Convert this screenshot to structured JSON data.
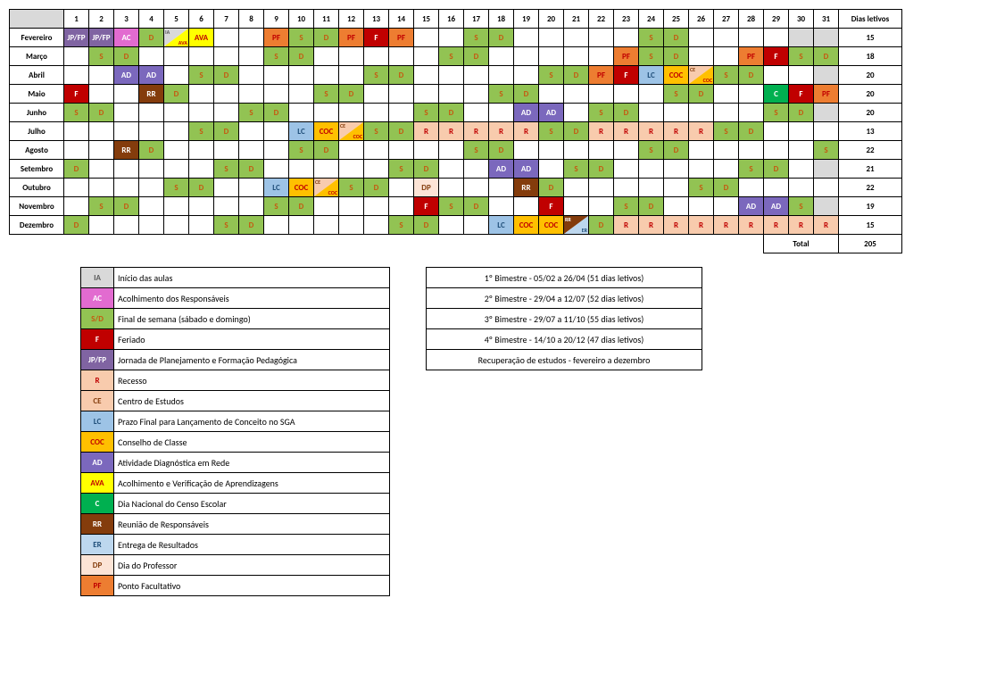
{
  "header": {
    "dias_letivos": "Dias letivos",
    "total_label": "Total",
    "total_value": "205"
  },
  "days": [
    "1",
    "2",
    "3",
    "4",
    "5",
    "6",
    "7",
    "8",
    "9",
    "10",
    "11",
    "12",
    "13",
    "14",
    "15",
    "16",
    "17",
    "18",
    "19",
    "20",
    "21",
    "22",
    "23",
    "24",
    "25",
    "26",
    "27",
    "28",
    "29",
    "30",
    "31"
  ],
  "months": [
    {
      "name": "Fevereiro",
      "dl": "15",
      "maxd": 29,
      "cells": {
        "1": {
          "t": "JP/FP",
          "c": "jp"
        },
        "2": {
          "t": "JP/FP",
          "c": "jp"
        },
        "3": {
          "t": "AC",
          "c": "ac"
        },
        "4": {
          "t": "D",
          "c": "d"
        },
        "5": {
          "split": [
            "ia",
            "#d9d9d9",
            "IA",
            "ava",
            "#ffff00",
            "AVA"
          ]
        },
        "6": {
          "t": "AVA",
          "c": "ava"
        },
        "9": {
          "t": "PF",
          "c": "pf"
        },
        "10": {
          "t": "S",
          "c": "s"
        },
        "11": {
          "t": "D",
          "c": "d"
        },
        "12": {
          "t": "PF",
          "c": "pf"
        },
        "13": {
          "t": "F",
          "c": "f"
        },
        "14": {
          "t": "PF",
          "c": "pf"
        },
        "17": {
          "t": "S",
          "c": "s"
        },
        "18": {
          "t": "D",
          "c": "d"
        },
        "24": {
          "t": "S",
          "c": "s"
        },
        "25": {
          "t": "D",
          "c": "d"
        }
      }
    },
    {
      "name": "Março",
      "dl": "18",
      "maxd": 31,
      "cells": {
        "2": {
          "t": "S",
          "c": "s"
        },
        "3": {
          "t": "D",
          "c": "d"
        },
        "9": {
          "t": "S",
          "c": "s"
        },
        "10": {
          "t": "D",
          "c": "d"
        },
        "16": {
          "t": "S",
          "c": "s"
        },
        "17": {
          "t": "D",
          "c": "d"
        },
        "23": {
          "t": "PF",
          "c": "pf"
        },
        "24": {
          "t": "S",
          "c": "s"
        },
        "25": {
          "t": "D",
          "c": "d"
        },
        "28": {
          "t": "PF",
          "c": "pf"
        },
        "29": {
          "t": "F",
          "c": "f"
        },
        "30": {
          "t": "S",
          "c": "s"
        },
        "31": {
          "t": "D",
          "c": "d"
        }
      }
    },
    {
      "name": "Abril",
      "dl": "20",
      "maxd": 30,
      "cells": {
        "3": {
          "t": "AD",
          "c": "ad"
        },
        "4": {
          "t": "AD",
          "c": "ad"
        },
        "6": {
          "t": "S",
          "c": "s"
        },
        "7": {
          "t": "D",
          "c": "d"
        },
        "13": {
          "t": "S",
          "c": "s"
        },
        "14": {
          "t": "D",
          "c": "d"
        },
        "20": {
          "t": "S",
          "c": "s"
        },
        "21": {
          "t": "D",
          "c": "d"
        },
        "22": {
          "t": "PF",
          "c": "pf"
        },
        "23": {
          "t": "F",
          "c": "f"
        },
        "24": {
          "t": "LC",
          "c": "lc"
        },
        "25": {
          "t": "COC",
          "c": "coc"
        },
        "26": {
          "split": [
            "ce",
            "#f8cbad",
            "CE",
            "coc",
            "#ffc000",
            "COC"
          ]
        },
        "27": {
          "t": "S",
          "c": "s"
        },
        "28": {
          "t": "D",
          "c": "d"
        }
      }
    },
    {
      "name": "Maio",
      "dl": "20",
      "maxd": 31,
      "cells": {
        "1": {
          "t": "F",
          "c": "f"
        },
        "4": {
          "t": "RR",
          "c": "rr"
        },
        "5": {
          "t": "D",
          "c": "d"
        },
        "11": {
          "t": "S",
          "c": "s"
        },
        "12": {
          "t": "D",
          "c": "d"
        },
        "18": {
          "t": "S",
          "c": "s"
        },
        "19": {
          "t": "D",
          "c": "d"
        },
        "25": {
          "t": "S",
          "c": "s"
        },
        "26": {
          "t": "D",
          "c": "d"
        },
        "29": {
          "t": "C",
          "c": "c"
        },
        "30": {
          "t": "F",
          "c": "f"
        },
        "31": {
          "t": "PF",
          "c": "pf"
        }
      }
    },
    {
      "name": "Junho",
      "dl": "20",
      "maxd": 30,
      "cells": {
        "1": {
          "t": "S",
          "c": "s"
        },
        "2": {
          "t": "D",
          "c": "d"
        },
        "8": {
          "t": "S",
          "c": "s"
        },
        "9": {
          "t": "D",
          "c": "d"
        },
        "15": {
          "t": "S",
          "c": "s"
        },
        "16": {
          "t": "D",
          "c": "d"
        },
        "19": {
          "t": "AD",
          "c": "ad"
        },
        "20": {
          "t": "AD",
          "c": "ad"
        },
        "22": {
          "t": "S",
          "c": "s"
        },
        "23": {
          "t": "D",
          "c": "d"
        },
        "29": {
          "t": "S",
          "c": "s"
        },
        "30": {
          "t": "D",
          "c": "d"
        }
      }
    },
    {
      "name": "Julho",
      "dl": "13",
      "maxd": 31,
      "cells": {
        "6": {
          "t": "S",
          "c": "s"
        },
        "7": {
          "t": "D",
          "c": "d"
        },
        "10": {
          "t": "LC",
          "c": "lc"
        },
        "11": {
          "t": "COC",
          "c": "coc"
        },
        "12": {
          "split": [
            "ce",
            "#f8cbad",
            "CE",
            "coc",
            "#ffc000",
            "COC"
          ]
        },
        "13": {
          "t": "S",
          "c": "s"
        },
        "14": {
          "t": "D",
          "c": "d"
        },
        "15": {
          "t": "R",
          "c": "r"
        },
        "16": {
          "t": "R",
          "c": "r"
        },
        "17": {
          "t": "R",
          "c": "r"
        },
        "18": {
          "t": "R",
          "c": "r"
        },
        "19": {
          "t": "R",
          "c": "r"
        },
        "20": {
          "t": "S",
          "c": "s"
        },
        "21": {
          "t": "D",
          "c": "d"
        },
        "22": {
          "t": "R",
          "c": "r"
        },
        "23": {
          "t": "R",
          "c": "r"
        },
        "24": {
          "t": "R",
          "c": "r"
        },
        "25": {
          "t": "R",
          "c": "r"
        },
        "26": {
          "t": "R",
          "c": "r"
        },
        "27": {
          "t": "S",
          "c": "s"
        },
        "28": {
          "t": "D",
          "c": "d"
        }
      }
    },
    {
      "name": "Agosto",
      "dl": "22",
      "maxd": 31,
      "cells": {
        "3": {
          "t": "RR",
          "c": "rr"
        },
        "4": {
          "t": "D",
          "c": "d"
        },
        "10": {
          "t": "S",
          "c": "s"
        },
        "11": {
          "t": "D",
          "c": "d"
        },
        "17": {
          "t": "S",
          "c": "s"
        },
        "18": {
          "t": "D",
          "c": "d"
        },
        "24": {
          "t": "S",
          "c": "s"
        },
        "25": {
          "t": "D",
          "c": "d"
        },
        "31": {
          "t": "S",
          "c": "s"
        }
      }
    },
    {
      "name": "Setembro",
      "dl": "21",
      "maxd": 30,
      "cells": {
        "1": {
          "t": "D",
          "c": "d"
        },
        "7": {
          "t": "S",
          "c": "s"
        },
        "8": {
          "t": "D",
          "c": "d"
        },
        "14": {
          "t": "S",
          "c": "s"
        },
        "15": {
          "t": "D",
          "c": "d"
        },
        "18": {
          "t": "AD",
          "c": "ad"
        },
        "19": {
          "t": "AD",
          "c": "ad"
        },
        "21": {
          "t": "S",
          "c": "s"
        },
        "22": {
          "t": "D",
          "c": "d"
        },
        "28": {
          "t": "S",
          "c": "s"
        },
        "29": {
          "t": "D",
          "c": "d"
        }
      }
    },
    {
      "name": "Outubro",
      "dl": "22",
      "maxd": 31,
      "cells": {
        "5": {
          "t": "S",
          "c": "s"
        },
        "6": {
          "t": "D",
          "c": "d"
        },
        "9": {
          "t": "LC",
          "c": "lc"
        },
        "10": {
          "t": "COC",
          "c": "coc"
        },
        "11": {
          "split": [
            "ce",
            "#f8cbad",
            "CE",
            "coc",
            "#ffc000",
            "COC"
          ]
        },
        "12": {
          "t": "S",
          "c": "s"
        },
        "13": {
          "t": "D",
          "c": "d"
        },
        "15": {
          "t": "DP",
          "c": "dp"
        },
        "19": {
          "t": "RR",
          "c": "rr"
        },
        "20": {
          "t": "D",
          "c": "d"
        },
        "26": {
          "t": "S",
          "c": "s"
        },
        "27": {
          "t": "D",
          "c": "d"
        }
      }
    },
    {
      "name": "Novembro",
      "dl": "19",
      "maxd": 30,
      "cells": {
        "2": {
          "t": "S",
          "c": "s"
        },
        "3": {
          "t": "D",
          "c": "d"
        },
        "9": {
          "t": "S",
          "c": "s"
        },
        "10": {
          "t": "D",
          "c": "d"
        },
        "15": {
          "t": "F",
          "c": "f"
        },
        "16": {
          "t": "S",
          "c": "s"
        },
        "17": {
          "t": "D",
          "c": "d"
        },
        "20": {
          "t": "F",
          "c": "f"
        },
        "23": {
          "t": "S",
          "c": "s"
        },
        "24": {
          "t": "D",
          "c": "d"
        },
        "28": {
          "t": "AD",
          "c": "ad"
        },
        "29": {
          "t": "AD",
          "c": "ad"
        },
        "30": {
          "t": "S",
          "c": "s"
        }
      }
    },
    {
      "name": "Dezembro",
      "dl": "15",
      "maxd": 31,
      "cells": {
        "1": {
          "t": "D",
          "c": "d"
        },
        "7": {
          "t": "S",
          "c": "s"
        },
        "8": {
          "t": "D",
          "c": "d"
        },
        "14": {
          "t": "S",
          "c": "s"
        },
        "15": {
          "t": "D",
          "c": "d"
        },
        "18": {
          "t": "LC",
          "c": "lc"
        },
        "19": {
          "t": "COC",
          "c": "coc"
        },
        "20": {
          "t": "COC",
          "c": "coc"
        },
        "21": {
          "split": [
            "rr",
            "#843c0c",
            "RR",
            "er",
            "#bdd7ee",
            "ER"
          ]
        },
        "22": {
          "t": "D",
          "c": "d"
        },
        "23": {
          "t": "R",
          "c": "r"
        },
        "24": {
          "t": "R",
          "c": "r"
        },
        "25": {
          "t": "R",
          "c": "r"
        },
        "26": {
          "t": "R",
          "c": "r"
        },
        "27": {
          "t": "R",
          "c": "r"
        },
        "28": {
          "t": "R",
          "c": "r"
        },
        "29": {
          "t": "R",
          "c": "r"
        },
        "30": {
          "t": "R",
          "c": "r"
        },
        "31": {
          "t": "R",
          "c": "r"
        }
      }
    }
  ],
  "legend": [
    {
      "c": "ia",
      "code": "IA",
      "label": "Início das aulas"
    },
    {
      "c": "ac",
      "code": "AC",
      "label": "Acolhimento dos Responsáveis"
    },
    {
      "c": "s",
      "code": "S/D",
      "label": "Final de semana (sábado e domingo)"
    },
    {
      "c": "f",
      "code": "F",
      "label": "Feriado"
    },
    {
      "c": "jp",
      "code": "JP/FP",
      "label": "Jornada de Planejamento e Formação Pedagógica"
    },
    {
      "c": "r",
      "code": "R",
      "label": "Recesso"
    },
    {
      "c": "ce",
      "code": "CE",
      "label": "Centro de Estudos"
    },
    {
      "c": "lc",
      "code": "LC",
      "label": "Prazo Final para Lançamento de Conceito no SGA"
    },
    {
      "c": "coc",
      "code": "COC",
      "label": "Conselho de Classe"
    },
    {
      "c": "ad",
      "code": "AD",
      "label": "Atividade Diagnóstica em Rede"
    },
    {
      "c": "ava",
      "code": "AVA",
      "label": "Acolhimento e Verificação de Aprendizagens"
    },
    {
      "c": "c",
      "code": "C",
      "label": "Dia Nacional do Censo Escolar"
    },
    {
      "c": "rr",
      "code": "RR",
      "label": "Reunião de Responsáveis"
    },
    {
      "c": "er",
      "code": "ER",
      "label": "Entrega de Resultados"
    },
    {
      "c": "dp",
      "code": "DP",
      "label": "Dia do Professor"
    },
    {
      "c": "pf",
      "code": "PF",
      "label": "Ponto Facultativo"
    }
  ],
  "bimestres": [
    "1º Bimestre - 05/02 a 26/04 (51 dias letivos)",
    "2º Bimestre - 29/04 a 12/07 (52 dias letivos)",
    "3º Bimestre - 29/07 a 11/10 (55 dias letivos)",
    "4º Bimestre - 14/10 a 20/12 (47 dias letivos)",
    "Recuperação de estudos - fevereiro a dezembro"
  ]
}
